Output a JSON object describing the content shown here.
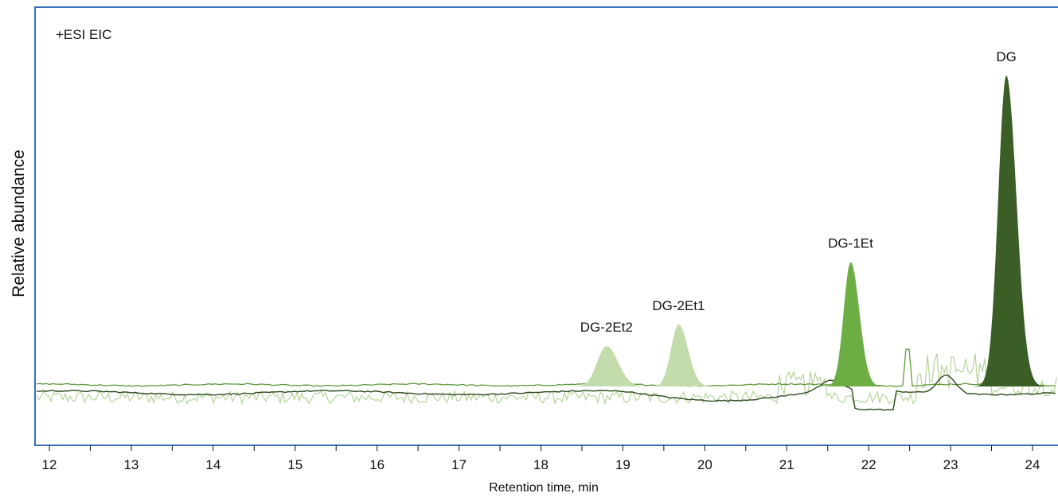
{
  "chart_data": {
    "type": "area",
    "annotation": "+ESI EIC",
    "xlabel": "Retention time, min",
    "ylabel": "Relative abundance",
    "xlim": [
      11.85,
      24.35
    ],
    "ylim": [
      -0.12,
      1.12
    ],
    "xticks": [
      12,
      13,
      14,
      15,
      16,
      17,
      18,
      19,
      20,
      21,
      22,
      23,
      24
    ],
    "xtick_labels": [
      "12",
      "13",
      "14",
      "15",
      "16",
      "17",
      "18",
      "19",
      "20",
      "21",
      "22",
      "23",
      "24"
    ],
    "grid": false,
    "colors": {
      "frame": "#3a6fb8",
      "DG-2Et2": "#c3dcab",
      "DG-2Et1": "#c3dcab",
      "DG-1Et": "#6cad44",
      "DG": "#3a5e26",
      "DG-baseline": "#2d4a1d",
      "DG-1Et-baseline": "#5f9a3c",
      "DG-2Et-baseline": "#b5d49a"
    },
    "peaks": [
      {
        "name": "DG-2Et2",
        "label": "DG-2Et2",
        "rt": 18.8,
        "height": 0.13
      },
      {
        "name": "DG-2Et1",
        "label": "DG-2Et1",
        "rt": 19.68,
        "height": 0.2
      },
      {
        "name": "DG-1Et",
        "label": "DG-1Et",
        "rt": 21.78,
        "height": 0.4
      },
      {
        "name": "DG",
        "label": "DG",
        "rt": 23.68,
        "height": 1.0
      }
    ]
  }
}
